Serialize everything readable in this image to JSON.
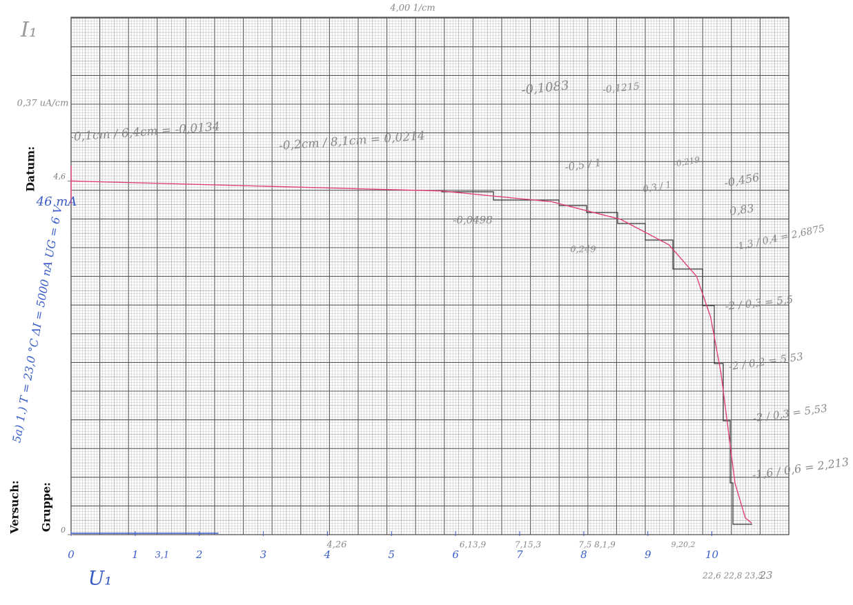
{
  "chart_data": {
    "type": "line",
    "x": [
      0,
      5.78,
      7.5,
      8.58,
      9.33,
      9.76,
      9.98,
      10.14,
      10.25,
      10.36,
      10.52,
      10.62
    ],
    "series": [
      {
        "name": "I1(U1)",
        "color": "#e0407a",
        "values": [
          4.6,
          4.47,
          4.33,
          4.1,
          3.77,
          3.36,
          2.83,
          2.11,
          1.39,
          0.67,
          0.22,
          0.15
        ]
      }
    ],
    "xlim": [
      0,
      11.2
    ],
    "ylim": [
      0,
      6.73
    ],
    "xticks": [
      0,
      1,
      2,
      3,
      4,
      5,
      6,
      7,
      8,
      9,
      10
    ],
    "yticks": [
      0,
      {
        "value": 4.6,
        "label": "4,6"
      }
    ],
    "y_label": "I₁",
    "x_label": "U₁",
    "top_note": "4,00 1/cm",
    "margin_labels": [
      "Datum:",
      "Versuch:",
      "Gruppe:"
    ],
    "annotations": [
      "0,37 uA/cm",
      "-0,1cm / 6,4cm = -0,0134",
      "-0,2cm / 8,1cm = 0,0214",
      "-0,1083",
      "-0,1215",
      "-0,5 / 1",
      "-0,3 / 1",
      "-0,0498",
      "0,249",
      "-0,219",
      "-0,456",
      "0,83",
      "-1,3 / 0,4 = 2,6875",
      "-2 / 0,3 = 5,5",
      "-2 / 0,2 = 5,53",
      "-2 / 0,3 = 5,53",
      "-1,6 / 0,6 = 2,213",
      "46 mA",
      "5a) 1.) T = 23,0 °C  ΔI = 5000 nA  UG = 6 V",
      "3,1",
      "4,26",
      "6,13,9",
      "7,15,3",
      "7,5  8,1,9",
      "9,20,2",
      "22,6  22,8  23,5",
      "23"
    ]
  }
}
